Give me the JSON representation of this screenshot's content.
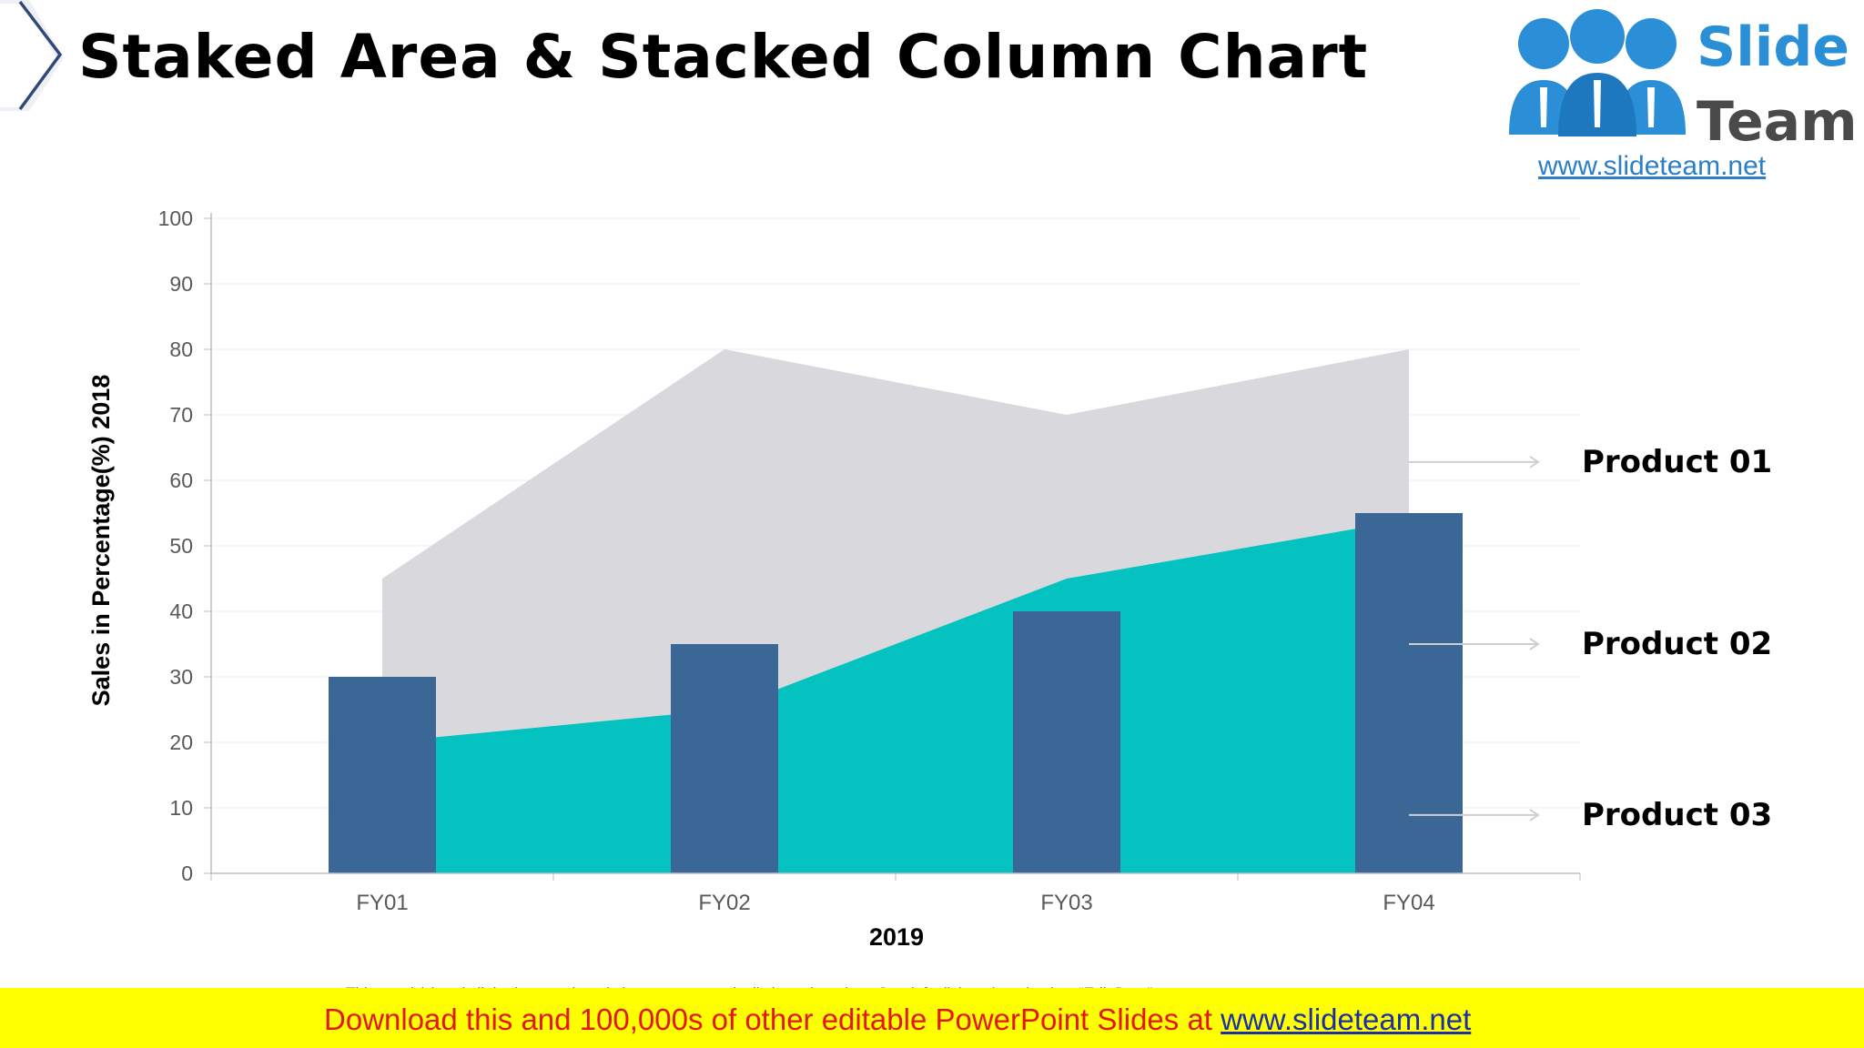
{
  "page": {
    "title": "Staked Area & Stacked Column Chart"
  },
  "logo": {
    "word1": "Slide",
    "word2": "Team",
    "url": "www.slideteam.net"
  },
  "legend": {
    "items": [
      {
        "label": "Product 01"
      },
      {
        "label": "Product 02"
      },
      {
        "label": "Product 03"
      }
    ]
  },
  "chart_data": {
    "type": "bar",
    "categories": [
      "FY01",
      "FY02",
      "FY03",
      "FY04"
    ],
    "series": [
      {
        "name": "Product 01",
        "kind": "area",
        "color": "#d9d8dc",
        "values": [
          45,
          80,
          70,
          80
        ]
      },
      {
        "name": "Product 02",
        "kind": "area",
        "color": "#03c2bf",
        "values": [
          20,
          25,
          45,
          54
        ]
      },
      {
        "name": "Product 03",
        "kind": "column",
        "color": "#3a6795",
        "values": [
          30,
          35,
          40,
          55
        ]
      }
    ],
    "xlabel": "2019",
    "ylabel": "Sales in Percentage(%) 2018",
    "ylim": [
      0,
      100
    ],
    "yticks": [
      "0",
      "10",
      "20",
      "30",
      "40",
      "50",
      "60",
      "70",
      "80",
      "90",
      "100"
    ],
    "grid": true,
    "legend_position": "right"
  },
  "footnote": "This graph/chart is linked to excel, and changes automatically based on data. Just left click on it and select “Edit Data”.",
  "banner": {
    "text": "Download this and 100,000s of other editable PowerPoint Slides at ",
    "link": "www.slideteam.net"
  }
}
